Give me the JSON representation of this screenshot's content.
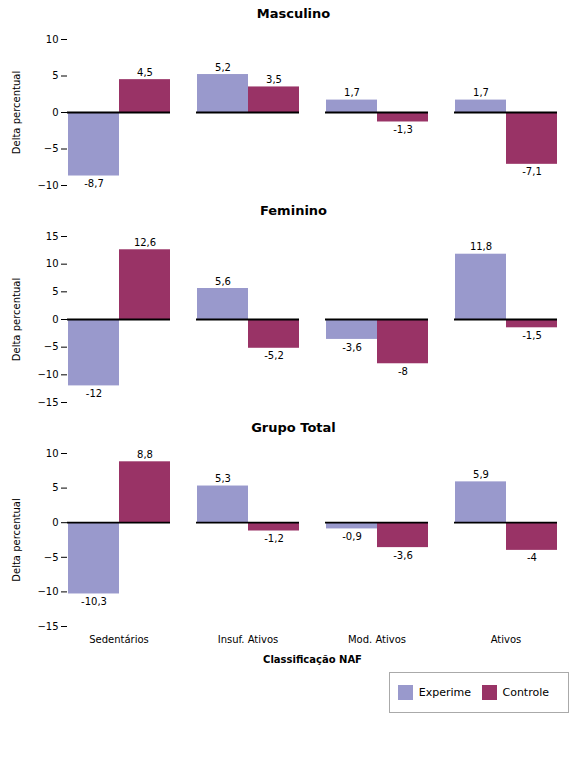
{
  "chart_data": [
    {
      "type": "bar",
      "title": "Masculino",
      "categories": [
        "Sedentários",
        "Insuf. Ativos",
        "Mod. Ativos",
        "Ativos"
      ],
      "ylabel": "Delta percentual",
      "series": [
        {
          "name": "Experime",
          "color": "#9999cc",
          "values": [
            -8.7,
            5.2,
            1.7,
            1.7
          ],
          "value_labels": [
            "-8,7",
            "5,2",
            "1,7",
            "1,7"
          ]
        },
        {
          "name": "Controle",
          "color": "#993366",
          "values": [
            4.5,
            3.5,
            -1.3,
            -7.1
          ],
          "value_labels": [
            "4,5",
            "3,5",
            "-1,3",
            "-7,1"
          ]
        }
      ],
      "ylim": [
        -10,
        10
      ],
      "yticks": [
        -10,
        -5,
        0,
        5,
        10
      ],
      "data_labels": true,
      "tick_labels": "y"
    },
    {
      "type": "bar",
      "title": "Feminino",
      "categories": [
        "Sedentários",
        "Insuf. Ativos",
        "Mod. Ativos",
        "Ativos"
      ],
      "ylabel": "Delta percentual",
      "series": [
        {
          "name": "Experime",
          "color": "#9999cc",
          "values": [
            -12.0,
            5.6,
            -3.6,
            11.8
          ],
          "value_labels": [
            "-12",
            "5,6",
            "-3,6",
            "11,8"
          ]
        },
        {
          "name": "Controle",
          "color": "#993366",
          "values": [
            12.6,
            -5.2,
            -8.0,
            -1.5
          ],
          "value_labels": [
            "12,6",
            "-5,2",
            "-8",
            "-1,5"
          ]
        }
      ],
      "ylim": [
        -15,
        15
      ],
      "yticks": [
        -15,
        -10,
        -5,
        0,
        5,
        10,
        15
      ],
      "data_labels": true,
      "tick_labels": "y"
    },
    {
      "type": "bar",
      "title": "Grupo Total",
      "categories": [
        "Sedentários",
        "Insuf. Ativos",
        "Mod. Ativos",
        "Ativos"
      ],
      "xlabel": "Classificação NAF",
      "ylabel": "Delta percentual",
      "series": [
        {
          "name": "Experime",
          "color": "#9999cc",
          "values": [
            -10.3,
            5.3,
            -0.9,
            5.9
          ],
          "value_labels": [
            "-10,3",
            "5,3",
            "-0,9",
            "5,9"
          ]
        },
        {
          "name": "Controle",
          "color": "#993366",
          "values": [
            8.8,
            -1.2,
            -3.6,
            -4.0
          ],
          "value_labels": [
            "8,8",
            "-1,2",
            "-3,6",
            "-4"
          ]
        }
      ],
      "ylim": [
        -15,
        10
      ],
      "yticks": [
        -15,
        -10,
        -5,
        0,
        5,
        10
      ],
      "data_labels": true,
      "legend": "lower right"
    }
  ]
}
